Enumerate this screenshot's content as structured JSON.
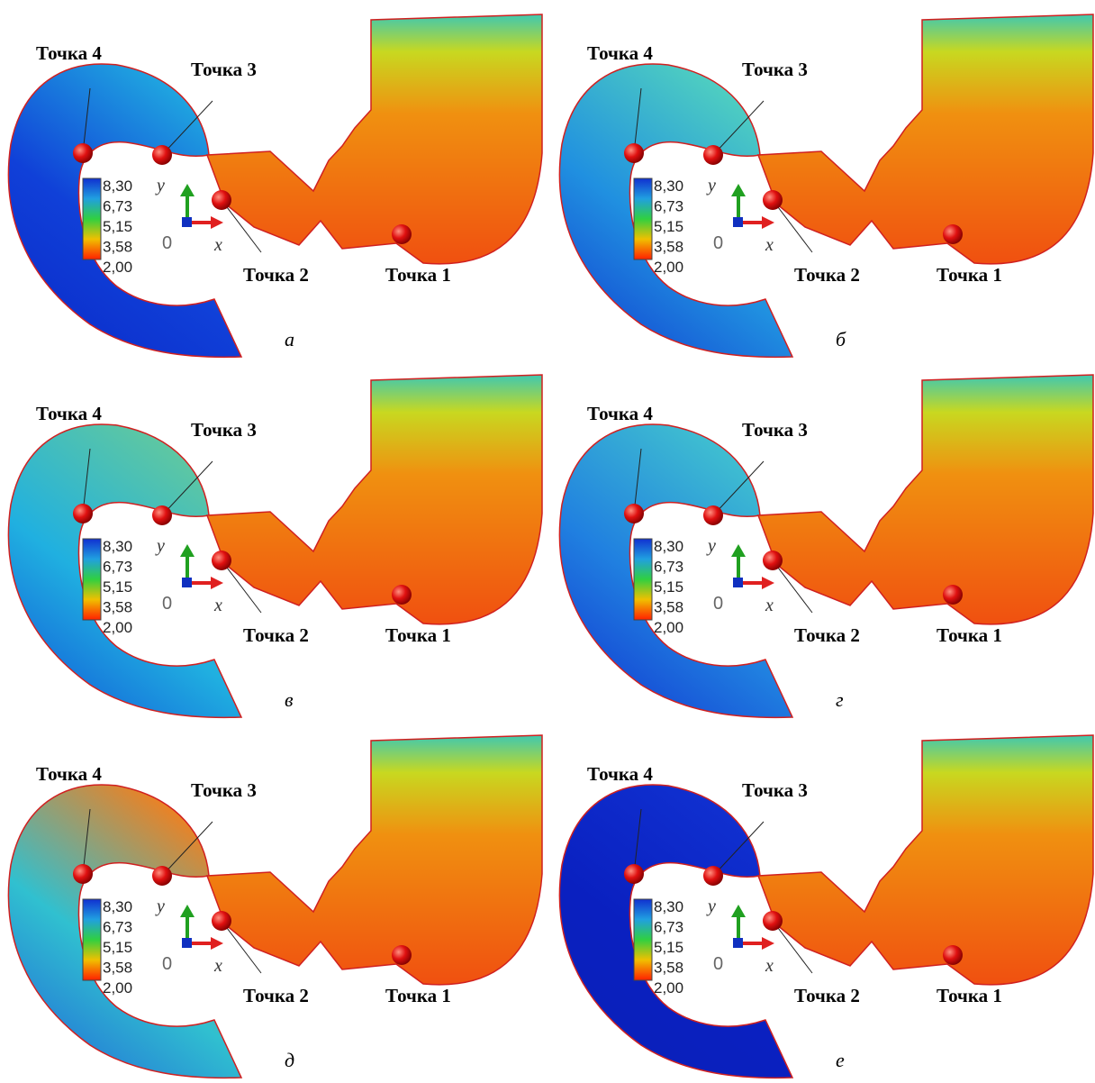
{
  "panels": [
    {
      "label": "а"
    },
    {
      "label": "б"
    },
    {
      "label": "в"
    },
    {
      "label": "г"
    },
    {
      "label": "д"
    },
    {
      "label": "е"
    }
  ],
  "points": [
    "Точка 1",
    "Точка 2",
    "Точка 3",
    "Точка 4"
  ],
  "colorbar": [
    "8,30",
    "6,73",
    "5,15",
    "3,58",
    "2,00"
  ],
  "axes": {
    "y": "y",
    "x": "x",
    "origin": "0"
  }
}
